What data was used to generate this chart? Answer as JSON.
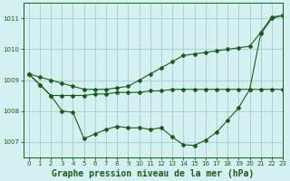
{
  "title": "Graphe pression niveau de la mer (hPa)",
  "bg_color": "#d4f0f0",
  "grid_color": "#a0cccc",
  "line_color": "#1a5c1a",
  "xlim": [
    -0.5,
    23
  ],
  "ylim": [
    1006.5,
    1011.5
  ],
  "yticks": [
    1007,
    1008,
    1009,
    1010,
    1011
  ],
  "xticks": [
    0,
    1,
    2,
    3,
    4,
    5,
    6,
    7,
    8,
    9,
    10,
    11,
    12,
    13,
    14,
    15,
    16,
    17,
    18,
    19,
    20,
    21,
    22,
    23
  ],
  "series_jagged": [
    1009.2,
    1008.85,
    1008.5,
    1008.0,
    1007.95,
    1007.1,
    1007.25,
    1007.4,
    1007.5,
    1007.45,
    1007.45,
    1007.4,
    1007.45,
    1007.15,
    1006.9,
    1006.88,
    1007.05,
    1007.3,
    1007.7,
    1008.1,
    1008.7,
    1010.5,
    1011.0,
    1011.1
  ],
  "series_flat": [
    1009.2,
    1008.85,
    1008.5,
    1008.5,
    1008.5,
    1008.5,
    1008.55,
    1008.55,
    1008.6,
    1008.6,
    1008.6,
    1008.65,
    1008.65,
    1008.7,
    1008.7,
    1008.7,
    1008.7,
    1008.7,
    1008.7,
    1008.7,
    1008.7,
    1008.7,
    1008.7,
    1008.7
  ],
  "series_diag": [
    1009.2,
    1009.1,
    1009.0,
    1008.9,
    1008.8,
    1008.7,
    1008.7,
    1008.7,
    1008.75,
    1008.8,
    1009.0,
    1009.2,
    1009.4,
    1009.6,
    1009.8,
    1009.85,
    1009.9,
    1009.95,
    1010.0,
    1010.05,
    1010.1,
    1010.55,
    1011.05,
    1011.1
  ],
  "title_fontsize": 7,
  "tick_labelsize": 5
}
